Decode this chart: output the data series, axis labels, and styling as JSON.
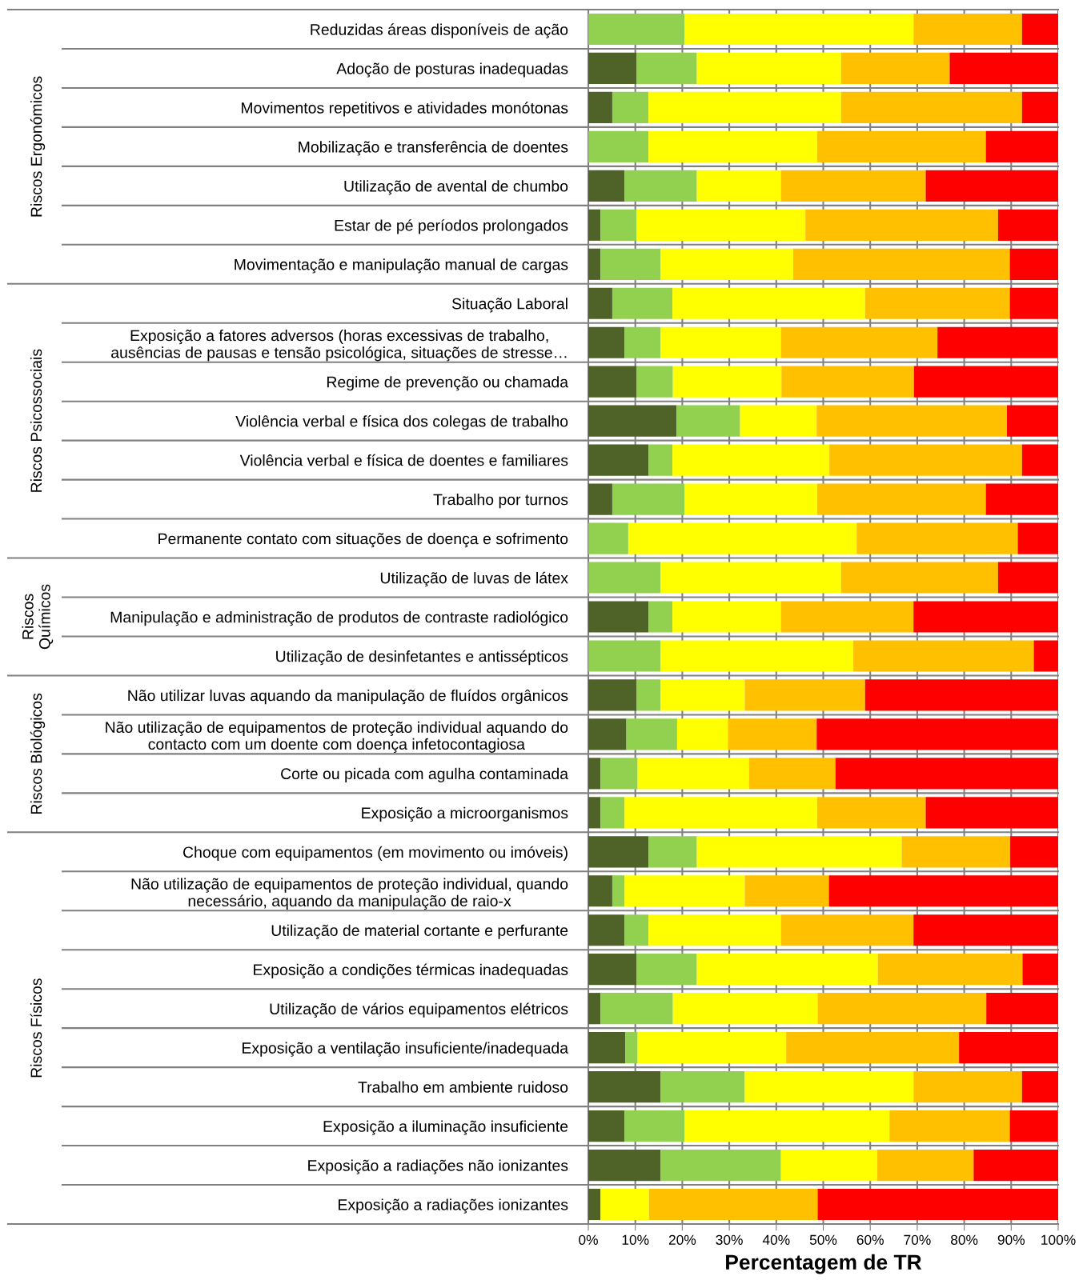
{
  "chart_data": {
    "type": "bar",
    "orientation": "horizontal",
    "stacked": true,
    "xlabel": "Percentagem de TR",
    "categories": [
      "Reduzidas áreas disponíveis de ação",
      "Adoção de posturas inadequadas",
      "Movimentos repetitivos e atividades monótonas",
      "Mobilização e transferência de doentes",
      "Utilização de avental de chumbo",
      "Estar de pé períodos prolongados",
      "Movimentação e manipulação manual de cargas",
      "Situação Laboral",
      "Exposição a fatores adversos (horas excessivas de trabalho,\nausências de pausas e tensão psicológica, situações de stresse…",
      "Regime de prevenção ou chamada",
      "Violência verbal e física dos colegas de trabalho",
      "Violência verbal e física de doentes e familiares",
      "Trabalho por turnos",
      "Permanente contato com situações de doença e sofrimento",
      "Utilização de luvas de látex",
      "Manipulação e administração de produtos de contraste radiológico",
      "Utilização de desinfetantes e antissépticos",
      "Não utilizar luvas aquando da manipulação de fluídos orgânicos",
      "Não utilização de equipamentos de proteção individual aquando do\ncontacto com um doente com doença infetocontagiosa",
      "Corte ou picada com agulha contaminada",
      "Exposição a microorganismos",
      "Choque com equipamentos (em movimento ou imóveis)",
      "Não utilização de equipamentos de proteção individual, quando\nnecessário, aquando da manipulação de raio-x",
      "Utilização de material cortante e perfurante",
      "Exposição a condições térmicas inadequadas",
      "Utilização de vários equipamentos elétricos",
      "Exposição a ventilação insuficiente/inadequada",
      "Trabalho em ambiente ruidoso",
      "Exposição a iluminação insuficiente",
      "Exposição a radiações não ionizantes",
      "Exposição a radiações ionizantes"
    ],
    "series": [
      {
        "color": "#4f6228",
        "values": [
          0,
          10.3,
          5.1,
          0,
          7.7,
          2.6,
          2.6,
          5.1,
          7.7,
          10.3,
          18.8,
          12.8,
          5.1,
          0,
          0,
          12.8,
          0,
          10.3,
          8.1,
          2.6,
          2.6,
          12.8,
          5.1,
          7.7,
          10.3,
          2.6,
          7.9,
          15.4,
          7.7,
          15.4,
          2.6
        ]
      },
      {
        "color": "#92d050",
        "values": [
          20.5,
          12.8,
          7.7,
          12.8,
          15.4,
          7.7,
          12.8,
          12.8,
          7.7,
          7.7,
          13.5,
          5.1,
          15.4,
          8.5,
          15.4,
          5.1,
          15.4,
          5.1,
          10.8,
          7.9,
          5.1,
          10.3,
          2.6,
          5.1,
          12.8,
          15.4,
          2.6,
          17.9,
          12.8,
          25.6,
          0
        ]
      },
      {
        "color": "#ffff00",
        "values": [
          48.7,
          30.7,
          41.0,
          35.9,
          17.9,
          35.9,
          28.2,
          41.0,
          25.6,
          23.1,
          16.3,
          33.4,
          28.2,
          48.6,
          38.4,
          23.1,
          41.0,
          17.9,
          10.8,
          23.7,
          41.0,
          43.6,
          25.6,
          28.2,
          38.5,
          30.8,
          31.6,
          35.9,
          43.6,
          20.5,
          10.3
        ]
      },
      {
        "color": "#ffc000",
        "values": [
          23.1,
          23.1,
          38.5,
          35.9,
          30.8,
          41.0,
          46.1,
          30.8,
          33.3,
          28.2,
          40.5,
          41.0,
          35.9,
          34.3,
          33.4,
          28.2,
          38.4,
          25.6,
          18.9,
          18.4,
          23.1,
          23.1,
          17.9,
          28.2,
          30.8,
          35.9,
          36.8,
          23.1,
          25.6,
          20.5,
          35.9
        ]
      },
      {
        "color": "#ff0000",
        "values": [
          7.7,
          23.1,
          7.7,
          15.4,
          28.2,
          12.8,
          10.3,
          10.3,
          25.6,
          30.7,
          10.9,
          7.7,
          15.4,
          8.6,
          12.8,
          30.8,
          5.2,
          41.1,
          51.4,
          47.4,
          28.2,
          10.2,
          48.8,
          30.8,
          7.6,
          15.3,
          21.1,
          7.7,
          10.2,
          18.0,
          51.2
        ]
      }
    ],
    "xlim": [
      0,
      100
    ],
    "xticks": [
      {
        "value": 0,
        "label": "0%"
      },
      {
        "value": 10,
        "label": "10%"
      },
      {
        "value": 20,
        "label": "20%"
      },
      {
        "value": 30,
        "label": "30%"
      },
      {
        "value": 40,
        "label": "40%"
      },
      {
        "value": 50,
        "label": "50%"
      },
      {
        "value": 60,
        "label": "60%"
      },
      {
        "value": 70,
        "label": "70%"
      },
      {
        "value": 80,
        "label": "80%"
      },
      {
        "value": 90,
        "label": "90%"
      },
      {
        "value": 100,
        "label": "100%"
      }
    ],
    "grid": "x",
    "legend": false,
    "annotations": [
      "Riscos Ergonómicos",
      "Riscos Psicossociais",
      "Riscos\nQuímicos",
      "Riscos Biológicos",
      "Riscos Físicos"
    ]
  }
}
